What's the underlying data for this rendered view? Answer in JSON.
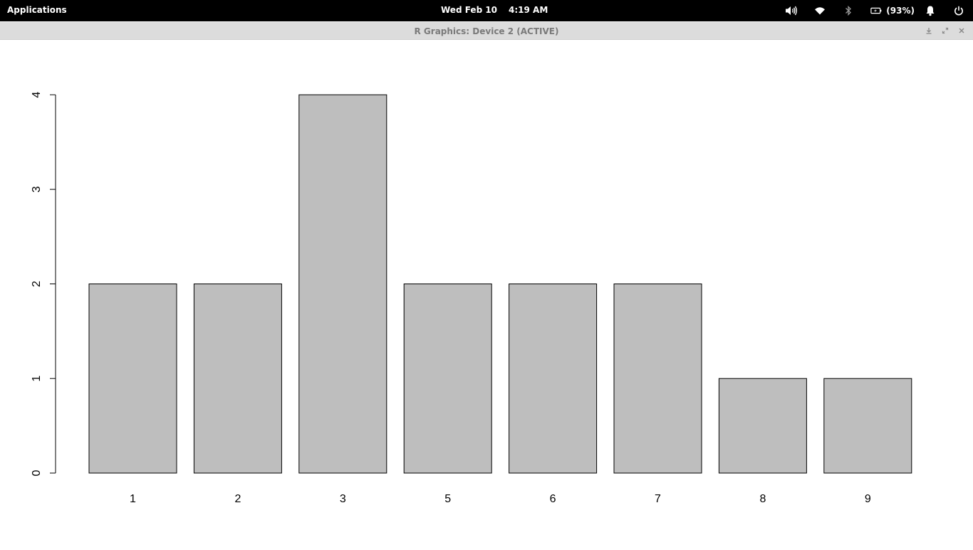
{
  "top_panel": {
    "applications_label": "Applications",
    "date": "Wed Feb 10",
    "time": "4:19 AM",
    "battery_percent": "(93%)",
    "indicators": [
      "volume-icon",
      "wifi-icon",
      "bluetooth-icon",
      "battery-icon",
      "notification-bell-icon",
      "power-icon"
    ]
  },
  "window": {
    "title": "R Graphics: Device 2 (ACTIVE)",
    "controls": [
      "minimize-icon",
      "maximize-icon",
      "close-icon"
    ]
  },
  "chart_data": {
    "type": "bar",
    "categories": [
      "1",
      "2",
      "3",
      "5",
      "6",
      "7",
      "8",
      "9"
    ],
    "values": [
      2,
      2,
      4,
      2,
      2,
      2,
      1,
      1
    ],
    "ylim": [
      0,
      4
    ],
    "yticks": [
      0,
      1,
      2,
      3,
      4
    ],
    "bar_color": "#bebebe",
    "bar_border": "#000000",
    "grid": false,
    "title": "",
    "xlabel": "",
    "ylabel": ""
  }
}
